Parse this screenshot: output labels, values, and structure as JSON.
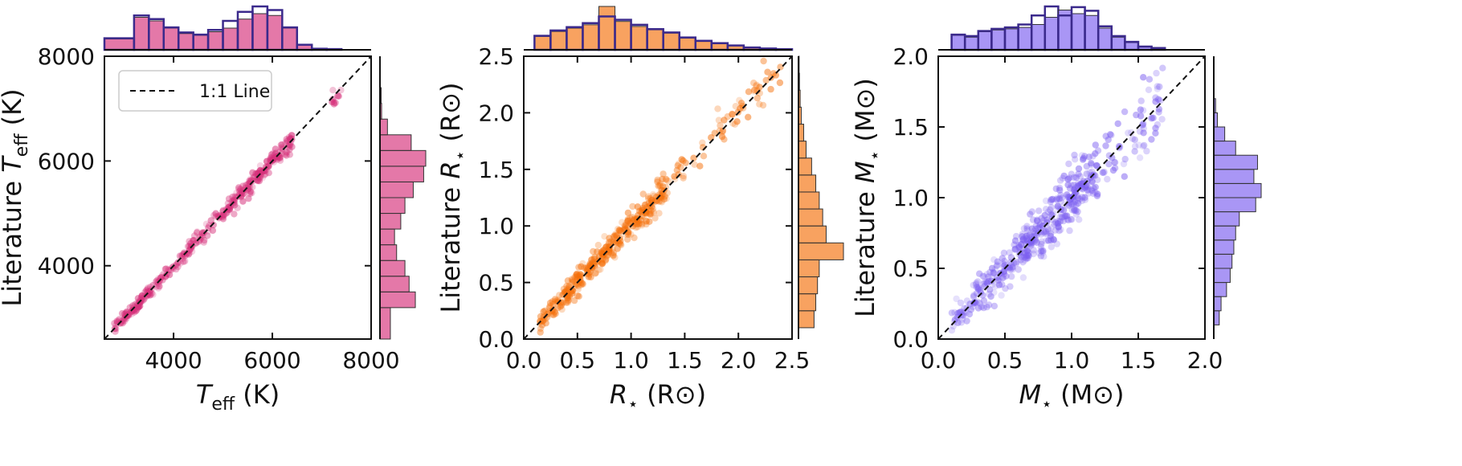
{
  "chart_data": [
    {
      "type": "scatter",
      "color": "#d6307a",
      "xlabel_main": "T",
      "xlabel_sub": "eff",
      "xlabel_unit": " (K)",
      "ylabel_prefix": "Literature ",
      "ylabel_main": "T",
      "ylabel_sub": "eff",
      "ylabel_unit": " (K)",
      "xlim": [
        2600,
        8000
      ],
      "ylim": [
        2600,
        8000
      ],
      "xticks": [
        4000,
        6000,
        8000
      ],
      "xtick_labels": [
        "4000",
        "6000",
        "8000"
      ],
      "yticks": [
        4000,
        6000,
        8000
      ],
      "ytick_labels": [
        "4000",
        "6000",
        "8000"
      ],
      "one_to_one_line": true,
      "legend": {
        "label": "1:1 Line",
        "placement": "upper-left"
      },
      "points": {
        "n": 380,
        "segments": [
          [
            2800,
            3700,
            0.3
          ],
          [
            3700,
            4700,
            0.17
          ],
          [
            4700,
            5500,
            0.18
          ],
          [
            5500,
            6400,
            0.33
          ],
          [
            7200,
            7400,
            0.02
          ]
        ],
        "scatter_sd": 80,
        "seed": 11
      },
      "hist_x": {
        "edges": [
          2600,
          3200,
          3500,
          3800,
          4100,
          4400,
          4700,
          5000,
          5300,
          5600,
          5900,
          6200,
          6500,
          6800,
          7100,
          7400
        ],
        "counts_a": [
          30,
          90,
          80,
          60,
          45,
          40,
          50,
          60,
          85,
          100,
          95,
          60,
          15,
          4,
          2
        ],
        "counts_b": [
          32,
          95,
          85,
          62,
          48,
          42,
          55,
          80,
          105,
          120,
          110,
          62,
          14,
          3,
          2
        ]
      },
      "hist_y": {
        "edges": [
          2600,
          3200,
          3500,
          3800,
          4100,
          4400,
          4700,
          5000,
          5300,
          5600,
          5900,
          6200,
          6500,
          6800,
          7100,
          7400
        ],
        "counts": [
          25,
          85,
          70,
          60,
          40,
          35,
          50,
          60,
          80,
          105,
          110,
          75,
          18,
          4,
          3
        ]
      }
    },
    {
      "type": "scatter",
      "color": "#f5700a",
      "xlabel_main": "R",
      "xlabel_sub": "⋆",
      "xlabel_unit": " (R⊙)",
      "ylabel_prefix": "Literature ",
      "ylabel_main": "R",
      "ylabel_sub": "⋆",
      "ylabel_unit": " (R⊙)",
      "xlim": [
        0.0,
        2.5
      ],
      "ylim": [
        0.0,
        2.5
      ],
      "xticks": [
        0.0,
        0.5,
        1.0,
        1.5,
        2.0,
        2.5
      ],
      "xtick_labels": [
        "0.0",
        "0.5",
        "1.0",
        "1.5",
        "2.0",
        "2.5"
      ],
      "yticks": [
        0.0,
        0.5,
        1.0,
        1.5,
        2.0,
        2.5
      ],
      "ytick_labels": [
        "0.0",
        "0.5",
        "1.0",
        "1.5",
        "2.0",
        "2.5"
      ],
      "one_to_one_line": true,
      "points": {
        "n": 420,
        "segments": [
          [
            0.15,
            0.7,
            0.35
          ],
          [
            0.7,
            1.3,
            0.45
          ],
          [
            1.3,
            2.4,
            0.2
          ]
        ],
        "scatter_sd": 0.07,
        "seed": 23
      },
      "hist_x": {
        "edges": [
          0.1,
          0.25,
          0.4,
          0.55,
          0.7,
          0.85,
          1.0,
          1.15,
          1.3,
          1.45,
          1.6,
          1.75,
          1.9,
          2.05,
          2.2,
          2.35,
          2.5
        ],
        "counts_a": [
          40,
          55,
          65,
          75,
          130,
          85,
          70,
          60,
          50,
          35,
          25,
          18,
          12,
          6,
          4,
          2
        ],
        "counts_b": [
          42,
          58,
          68,
          80,
          100,
          90,
          75,
          62,
          52,
          37,
          27,
          20,
          13,
          7,
          4,
          2
        ]
      },
      "hist_y": {
        "edges": [
          0.1,
          0.25,
          0.4,
          0.55,
          0.7,
          0.85,
          1.0,
          1.15,
          1.3,
          1.45,
          1.6,
          1.75,
          1.9,
          2.05,
          2.2,
          2.35,
          2.5
        ],
        "counts": [
          45,
          50,
          55,
          60,
          130,
          80,
          70,
          60,
          50,
          38,
          22,
          15,
          8,
          5,
          3,
          2
        ]
      }
    },
    {
      "type": "scatter",
      "color": "#7b5ef0",
      "xlabel_main": "M",
      "xlabel_sub": "⋆",
      "xlabel_unit": " (M⊙)",
      "ylabel_prefix": "Literature ",
      "ylabel_main": "M",
      "ylabel_sub": "⋆",
      "ylabel_unit": " (M⊙)",
      "xlim": [
        0.0,
        2.0
      ],
      "ylim": [
        0.0,
        2.0
      ],
      "xticks": [
        0.0,
        0.5,
        1.0,
        1.5,
        2.0
      ],
      "xtick_labels": [
        "0.0",
        "0.5",
        "1.0",
        "1.5",
        "2.0"
      ],
      "yticks": [
        0.0,
        0.5,
        1.0,
        1.5,
        2.0
      ],
      "ytick_labels": [
        "0.0",
        "0.5",
        "1.0",
        "1.5",
        "2.0"
      ],
      "one_to_one_line": true,
      "points": {
        "n": 480,
        "segments": [
          [
            0.1,
            0.6,
            0.3
          ],
          [
            0.6,
            1.2,
            0.55
          ],
          [
            1.2,
            1.7,
            0.15
          ]
        ],
        "scatter_sd": 0.1,
        "seed": 37
      },
      "hist_x": {
        "edges": [
          0.1,
          0.2,
          0.3,
          0.4,
          0.5,
          0.6,
          0.7,
          0.8,
          0.9,
          1.0,
          1.1,
          1.2,
          1.3,
          1.4,
          1.5,
          1.6,
          1.7
        ],
        "counts_a": [
          40,
          35,
          50,
          55,
          58,
          62,
          70,
          90,
          110,
          100,
          95,
          60,
          35,
          20,
          8,
          5
        ],
        "counts_b": [
          42,
          38,
          52,
          58,
          62,
          70,
          95,
          120,
          95,
          118,
          108,
          65,
          38,
          22,
          9,
          5
        ]
      },
      "hist_y": {
        "edges": [
          0.1,
          0.2,
          0.3,
          0.4,
          0.5,
          0.6,
          0.7,
          0.8,
          0.9,
          1.0,
          1.1,
          1.2,
          1.3,
          1.4,
          1.5,
          1.6,
          1.7
        ],
        "counts": [
          15,
          20,
          35,
          45,
          50,
          55,
          60,
          70,
          115,
          130,
          110,
          120,
          60,
          30,
          10,
          5
        ]
      }
    }
  ]
}
